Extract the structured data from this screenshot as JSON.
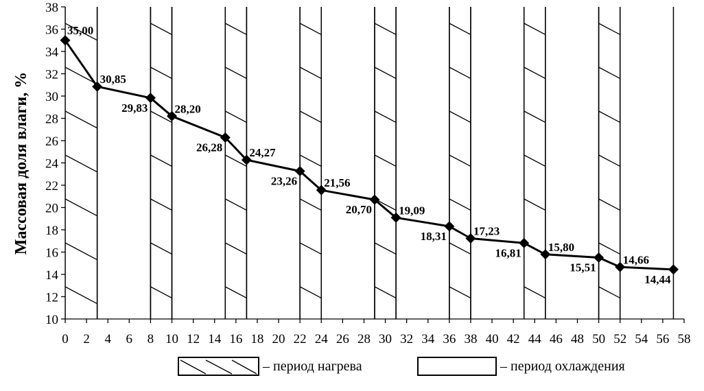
{
  "chart_data": {
    "type": "line",
    "title": "",
    "xlabel": "",
    "ylabel": "Массовая доля влаги,  %",
    "xlim": [
      0,
      58
    ],
    "ylim": [
      10,
      38
    ],
    "x_ticks": [
      0,
      2,
      4,
      6,
      8,
      10,
      12,
      14,
      16,
      18,
      20,
      22,
      24,
      26,
      28,
      30,
      32,
      34,
      36,
      38,
      40,
      42,
      44,
      46,
      48,
      50,
      52,
      54,
      56,
      58
    ],
    "y_ticks": [
      10,
      12,
      14,
      16,
      18,
      20,
      22,
      24,
      26,
      28,
      30,
      32,
      34,
      36,
      38
    ],
    "grid": false,
    "series": [
      {
        "x": [
          0,
          3,
          8,
          10,
          15,
          17,
          22,
          24,
          29,
          31,
          36,
          38,
          43,
          45,
          50,
          52,
          57
        ],
        "values": [
          35.0,
          30.85,
          29.83,
          28.2,
          26.28,
          24.27,
          23.26,
          21.56,
          20.7,
          19.09,
          18.31,
          17.23,
          16.81,
          15.8,
          15.51,
          14.66,
          14.44
        ],
        "labels": [
          "35,00",
          "30,85",
          "29,83",
          "28,20",
          "26,28",
          "24,27",
          "23,26",
          "21,56",
          "20,70",
          "19,09",
          "18,31",
          "17,23",
          "16,81",
          "15,80",
          "15,51",
          "14,66",
          "14,44"
        ],
        "color": "#000000",
        "marker": "diamond"
      }
    ],
    "periods": [
      {
        "type": "heating",
        "from": 0,
        "to": 3
      },
      {
        "type": "cooling",
        "from": 3,
        "to": 8
      },
      {
        "type": "heating",
        "from": 8,
        "to": 10
      },
      {
        "type": "cooling",
        "from": 10,
        "to": 15
      },
      {
        "type": "heating",
        "from": 15,
        "to": 17
      },
      {
        "type": "cooling",
        "from": 17,
        "to": 22
      },
      {
        "type": "heating",
        "from": 22,
        "to": 24
      },
      {
        "type": "cooling",
        "from": 24,
        "to": 29
      },
      {
        "type": "heating",
        "from": 29,
        "to": 31
      },
      {
        "type": "cooling",
        "from": 31,
        "to": 36
      },
      {
        "type": "heating",
        "from": 36,
        "to": 38
      },
      {
        "type": "cooling",
        "from": 38,
        "to": 43
      },
      {
        "type": "heating",
        "from": 43,
        "to": 45
      },
      {
        "type": "cooling",
        "from": 45,
        "to": 50
      },
      {
        "type": "heating",
        "from": 50,
        "to": 52
      },
      {
        "type": "cooling",
        "from": 52,
        "to": 57
      }
    ],
    "legend": {
      "placement": "bottom",
      "entries": [
        {
          "type": "heating",
          "label": "– период нагрева"
        },
        {
          "type": "cooling",
          "label": "– период охлаждения"
        }
      ]
    }
  }
}
